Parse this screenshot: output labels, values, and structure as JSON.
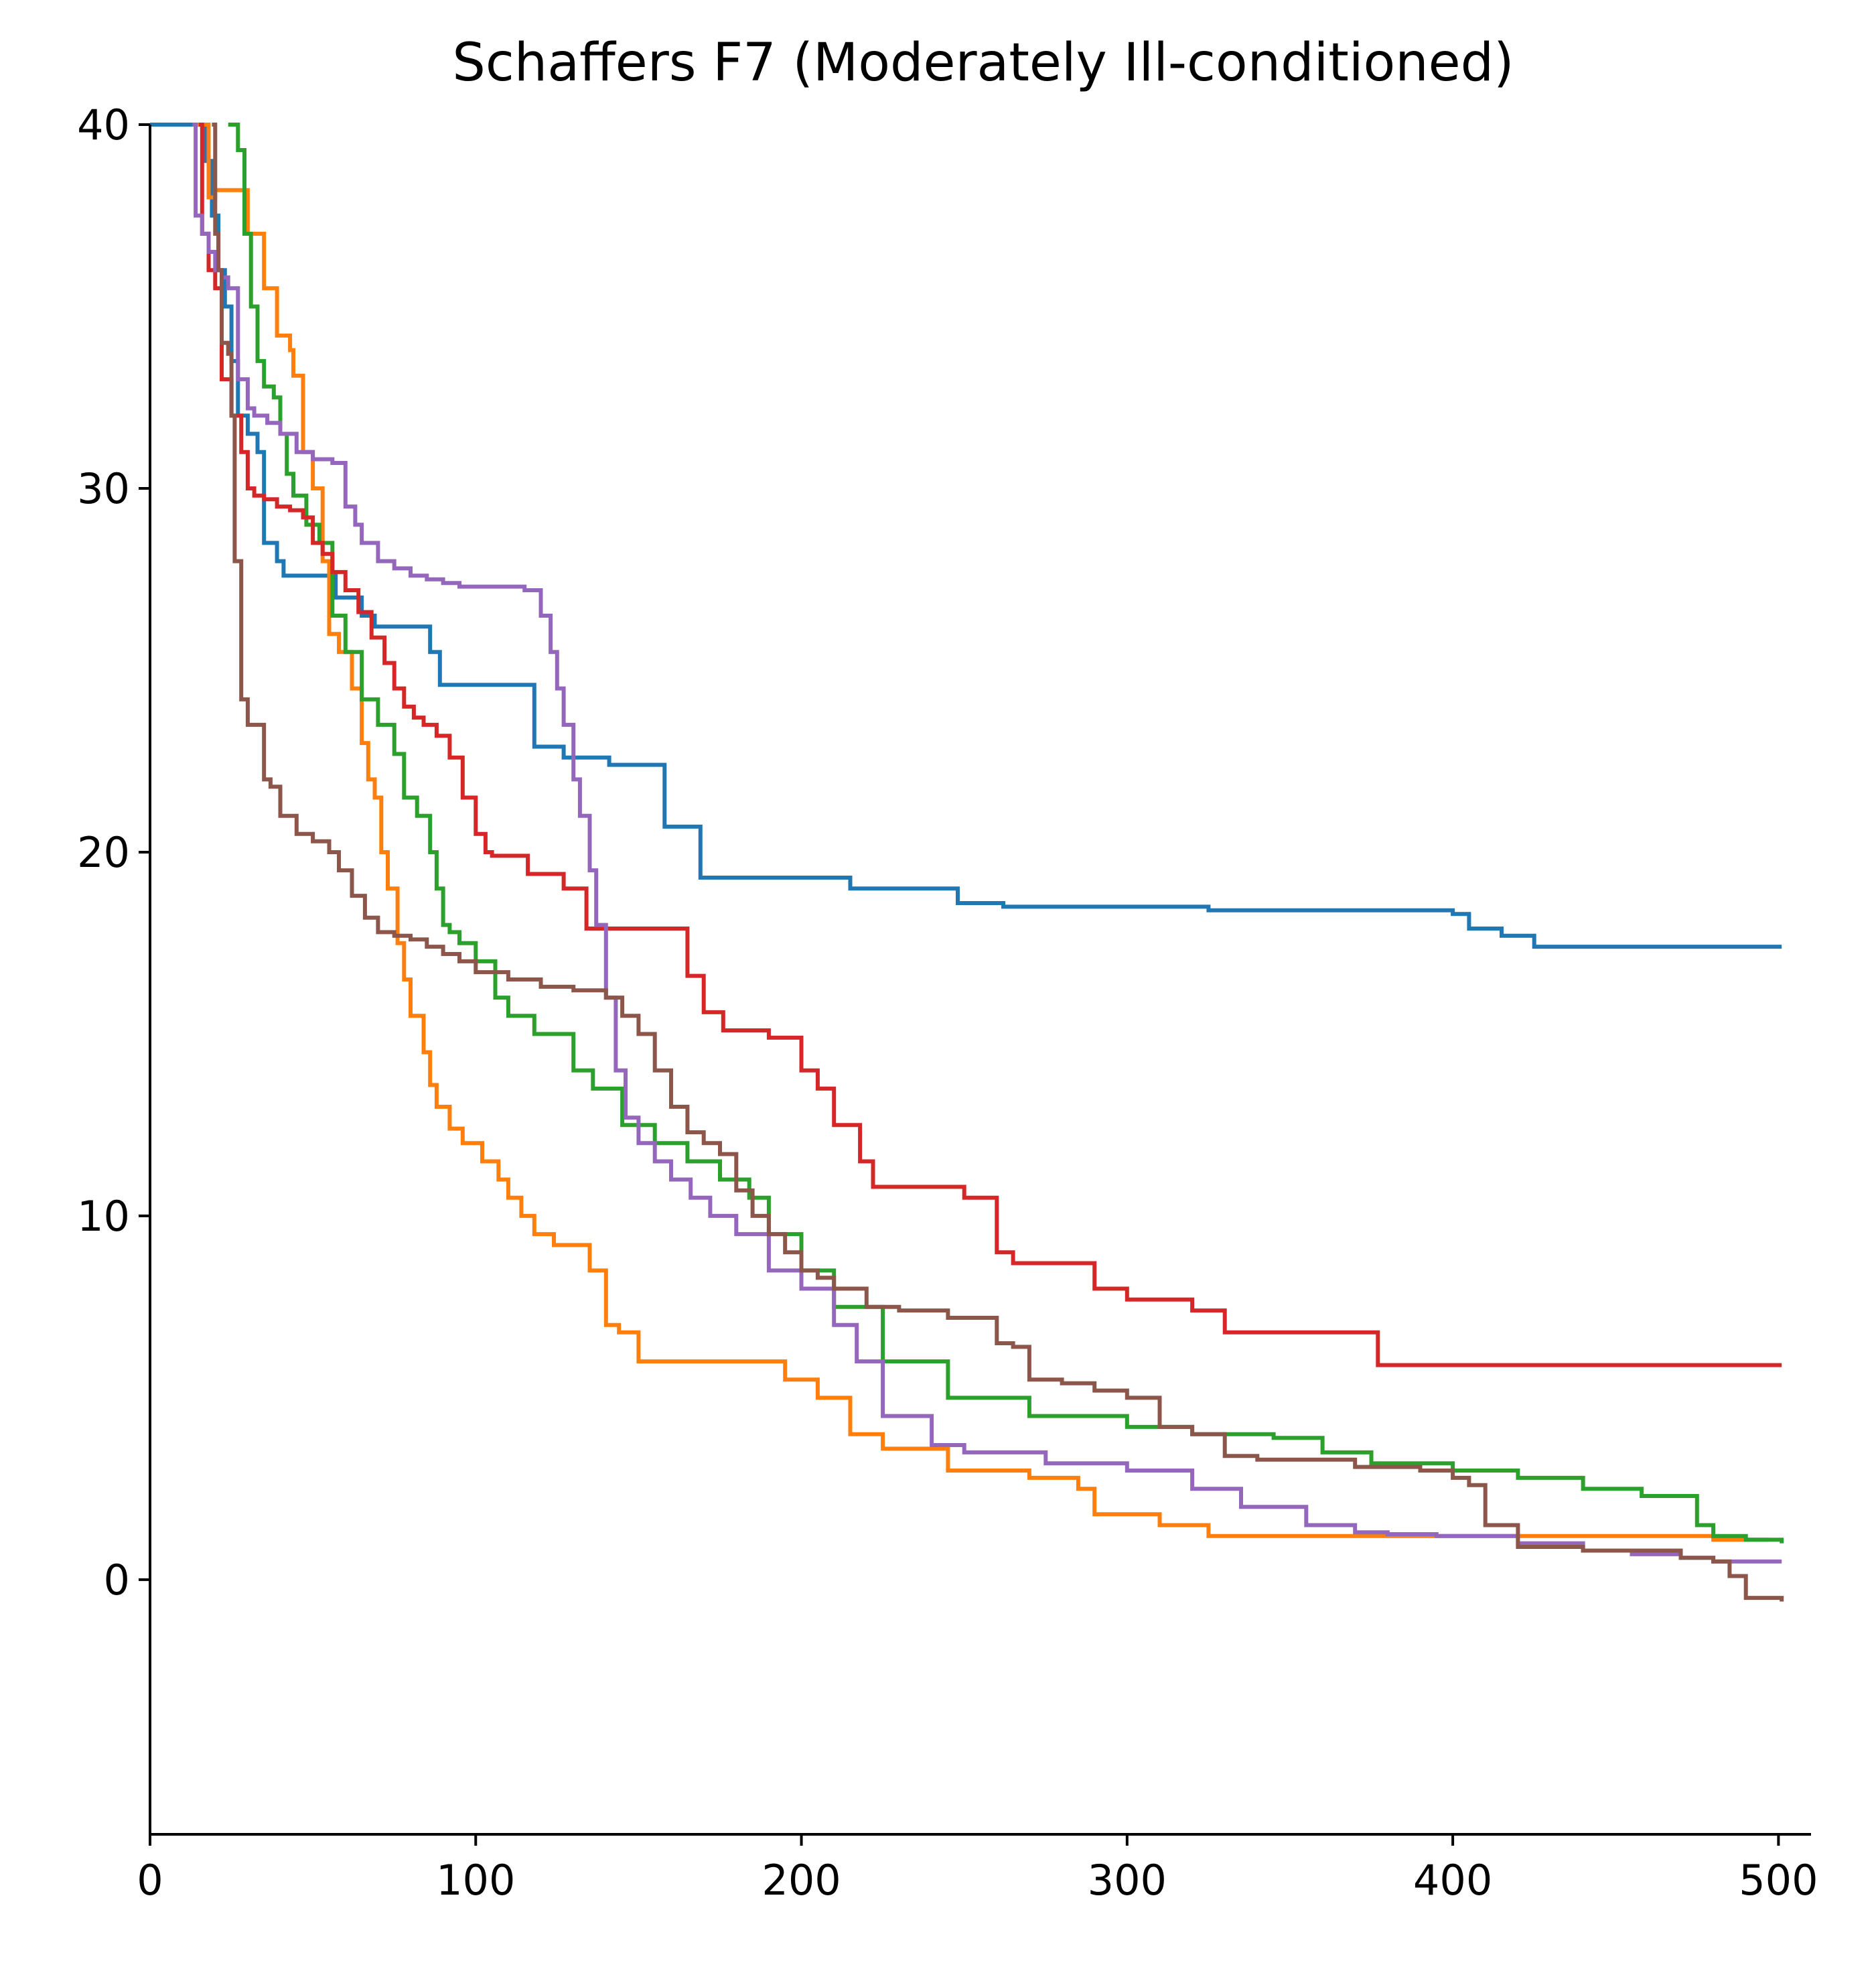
{
  "chart_data": {
    "type": "line",
    "title": "Schaffers F7 (Moderately Ill-conditioned)",
    "xlabel": "",
    "ylabel": "",
    "xlim": [
      0,
      510
    ],
    "ylim": [
      -7,
      40
    ],
    "xticks": [
      0,
      100,
      200,
      300,
      400,
      500
    ],
    "yticks": [
      0,
      10,
      20,
      30,
      40
    ],
    "xtick_labels": [
      "0",
      "100",
      "200",
      "300",
      "400",
      "500"
    ],
    "ytick_labels": [
      "0",
      "10",
      "20",
      "30",
      "40"
    ],
    "grid": false,
    "legend": "none",
    "series": [
      {
        "color": "#1f77b4",
        "x": [
          0,
          15,
          17,
          19,
          21,
          23,
          25,
          27,
          30,
          33,
          35,
          39,
          41,
          50,
          57,
          65,
          69,
          80,
          86,
          89,
          115,
          118,
          127,
          141,
          158,
          169,
          215,
          248,
          262,
          325,
          400,
          405,
          415,
          425,
          501
        ],
        "y": [
          40,
          40,
          39,
          37.5,
          36,
          35,
          33.5,
          32,
          31.5,
          31,
          28.5,
          28,
          27.6,
          27.6,
          27,
          26.5,
          26.2,
          26.2,
          25.5,
          24.6,
          24.6,
          22.9,
          22.6,
          22.4,
          20.7,
          19.3,
          19,
          18.6,
          18.5,
          18.4,
          18.3,
          17.9,
          17.7,
          17.4,
          17.4
        ]
      },
      {
        "color": "#ff7f0e",
        "x": [
          14,
          18,
          20,
          22,
          30,
          35,
          39,
          43,
          44,
          47,
          50,
          53,
          55,
          58,
          62,
          65,
          67,
          69,
          71,
          73,
          76,
          78,
          80,
          84,
          86,
          88,
          92,
          96,
          102,
          107,
          110,
          114,
          118,
          124,
          135,
          140,
          144,
          150,
          180,
          195,
          200,
          205,
          215,
          225,
          245,
          270,
          285,
          290,
          310,
          325,
          400,
          480,
          497
        ],
        "y": [
          40,
          38,
          38.2,
          38.2,
          37,
          35.5,
          34.2,
          33.8,
          33.1,
          31,
          30,
          28,
          26,
          25.5,
          24.5,
          23,
          22,
          21.5,
          20,
          19,
          17.5,
          16.5,
          15.5,
          14.5,
          13.6,
          13,
          12.4,
          12,
          11.5,
          11,
          10.5,
          10,
          9.5,
          9.2,
          8.5,
          7,
          6.8,
          6,
          6,
          5.5,
          5.5,
          5,
          4,
          3.6,
          3,
          2.8,
          2.5,
          1.8,
          1.5,
          1.2,
          1.2,
          1.1,
          1.1
        ]
      },
      {
        "color": "#2ca02c",
        "x": [
          24,
          27,
          29,
          31,
          33,
          35,
          38,
          40,
          42,
          44,
          48,
          52,
          56,
          60,
          65,
          70,
          75,
          78,
          82,
          86,
          88,
          90,
          92,
          95,
          100,
          106,
          110,
          118,
          130,
          136,
          145,
          155,
          165,
          175,
          184,
          190,
          200,
          210,
          225,
          245,
          270,
          300,
          320,
          345,
          360,
          375,
          400,
          420,
          440,
          458,
          475,
          480,
          490,
          501
        ],
        "y": [
          40,
          39.3,
          37,
          35,
          33.5,
          32.8,
          32.5,
          31.5,
          30.4,
          29.8,
          29,
          28.5,
          26.5,
          25.5,
          24.2,
          23.5,
          22.7,
          21.5,
          21,
          20,
          19,
          18,
          17.8,
          17.5,
          17,
          16,
          15.5,
          15,
          14,
          13.5,
          12.5,
          12,
          11.5,
          11,
          10.5,
          9.5,
          8.5,
          7.5,
          6,
          5,
          4.5,
          4.2,
          4,
          3.9,
          3.5,
          3.2,
          3,
          2.8,
          2.5,
          2.3,
          1.5,
          1.2,
          1.1,
          1
        ]
      },
      {
        "color": "#d62728",
        "x": [
          15,
          16,
          18,
          20,
          22,
          25,
          28,
          30,
          32,
          35,
          39,
          43,
          47,
          50,
          53,
          56,
          60,
          64,
          68,
          72,
          75,
          78,
          81,
          84,
          88,
          92,
          96,
          100,
          103,
          105,
          116,
          127,
          134,
          140,
          152,
          165,
          170,
          176,
          190,
          200,
          205,
          210,
          218,
          222,
          250,
          260,
          265,
          290,
          300,
          320,
          330,
          377,
          501
        ],
        "y": [
          40,
          37,
          36,
          35.5,
          33,
          32,
          31,
          30,
          29.8,
          29.7,
          29.5,
          29.4,
          29.2,
          28.5,
          28.2,
          27.7,
          27.2,
          26.6,
          25.9,
          25.2,
          24.5,
          24,
          23.7,
          23.5,
          23.2,
          22.6,
          21.5,
          20.5,
          20,
          19.9,
          19.4,
          19,
          17.9,
          17.9,
          17.9,
          16.6,
          15.6,
          15.1,
          14.9,
          14,
          13.5,
          12.5,
          11.5,
          10.8,
          10.5,
          9,
          8.7,
          8,
          7.7,
          7.4,
          6.8,
          5.9,
          5.9
        ]
      },
      {
        "color": "#9467bd",
        "x": [
          13,
          14,
          16,
          18,
          20,
          22,
          24,
          27,
          30,
          32,
          36,
          40,
          45,
          50,
          56,
          60,
          63,
          65,
          70,
          75,
          80,
          85,
          90,
          95,
          105,
          115,
          120,
          123,
          125,
          127,
          130,
          132,
          135,
          137,
          140,
          143,
          146,
          150,
          155,
          160,
          166,
          172,
          180,
          190,
          200,
          210,
          217,
          225,
          240,
          250,
          275,
          300,
          320,
          335,
          355,
          370,
          380,
          395,
          420,
          440,
          455,
          470,
          480,
          501
        ],
        "y": [
          40,
          37.5,
          37,
          36.5,
          36,
          35.8,
          35.5,
          33,
          32.2,
          32,
          31.8,
          31.5,
          31,
          30.8,
          30.7,
          29.5,
          29,
          28.5,
          28,
          27.8,
          27.6,
          27.5,
          27.4,
          27.3,
          27.3,
          27.2,
          26.5,
          25.5,
          24.5,
          23.5,
          22,
          21,
          19.5,
          18,
          16,
          14,
          12.7,
          12,
          11.5,
          11,
          10.5,
          10,
          9.5,
          8.5,
          8,
          7,
          6,
          4.5,
          3.7,
          3.5,
          3.2,
          3,
          2.5,
          2,
          1.5,
          1.3,
          1.25,
          1.2,
          1,
          0.8,
          0.7,
          0.6,
          0.5,
          0.5
        ]
      },
      {
        "color": "#8c564b",
        "x": [
          19,
          20,
          21,
          22,
          24,
          25,
          26,
          28,
          30,
          35,
          37,
          40,
          45,
          50,
          55,
          58,
          62,
          66,
          70,
          75,
          80,
          85,
          90,
          95,
          100,
          110,
          120,
          130,
          140,
          145,
          150,
          155,
          160,
          165,
          170,
          175,
          180,
          185,
          190,
          195,
          200,
          205,
          210,
          220,
          230,
          245,
          260,
          265,
          270,
          280,
          290,
          300,
          310,
          320,
          330,
          340,
          370,
          390,
          400,
          405,
          410,
          420,
          440,
          470,
          480,
          485,
          490,
          501
        ],
        "y": [
          40,
          37,
          36,
          34,
          33.7,
          32,
          28,
          24.2,
          23.5,
          22,
          21.8,
          21,
          20.5,
          20.3,
          20,
          19.5,
          18.8,
          18.2,
          17.8,
          17.7,
          17.6,
          17.4,
          17.2,
          17,
          16.7,
          16.5,
          16.3,
          16.2,
          16,
          15.5,
          15,
          14,
          13,
          12.3,
          12,
          11.7,
          10.7,
          10,
          9.5,
          9,
          8.5,
          8.3,
          8,
          7.5,
          7.4,
          7.2,
          6.5,
          6.4,
          5.5,
          5.4,
          5.2,
          5,
          4.2,
          4,
          3.4,
          3.3,
          3.1,
          3,
          2.8,
          2.6,
          1.5,
          0.9,
          0.8,
          0.6,
          0.5,
          0.1,
          -0.5,
          -0.6
        ]
      }
    ]
  }
}
